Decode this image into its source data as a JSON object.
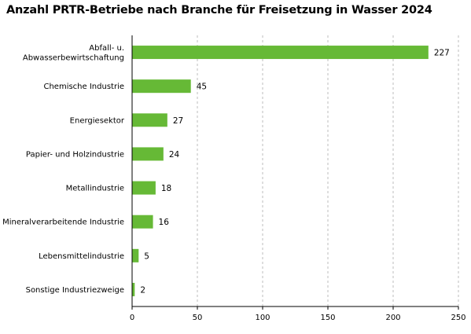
{
  "chart_data": {
    "type": "bar",
    "orientation": "horizontal",
    "title": "Anzahl PRTR-Betriebe nach Branche für Freisetzung in Wasser 2024",
    "categories": [
      [
        "Abfall- u.",
        "Abwasserbewirtschaftung"
      ],
      [
        "Chemische Industrie"
      ],
      [
        "Energiesektor"
      ],
      [
        "Papier- und Holzindustrie"
      ],
      [
        "Metallindustrie"
      ],
      [
        "Mineralverarbeitende Industrie"
      ],
      [
        "Lebensmittelindustrie"
      ],
      [
        "Sonstige Industriezweige"
      ]
    ],
    "values": [
      227,
      45,
      27,
      24,
      18,
      16,
      5,
      2
    ],
    "xlim": [
      0,
      250
    ],
    "xticks": [
      0,
      50,
      100,
      150,
      200,
      250
    ],
    "xtick_labels": [
      "0",
      "50",
      "100",
      "150",
      "200",
      "250"
    ],
    "grid": "vertical-dashed",
    "bar_color": "#66b936"
  }
}
